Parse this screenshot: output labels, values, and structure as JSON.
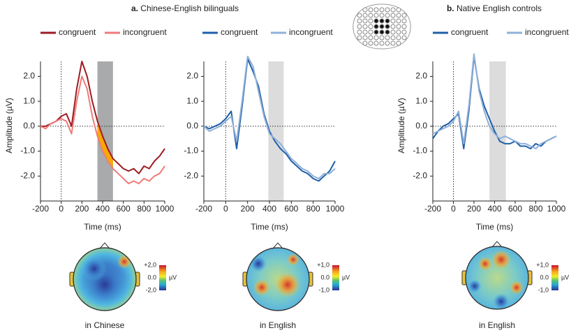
{
  "panels": [
    {
      "label": "a.",
      "title": "Chinese-English bilinguals"
    },
    {
      "label": "b.",
      "title": "Native English controls"
    }
  ],
  "chart_data": [
    {
      "type": "line",
      "xlabel": "Time (ms)",
      "ylabel": "Amplitude (µV)",
      "x": [
        -200,
        -150,
        -100,
        -50,
        0,
        50,
        100,
        150,
        200,
        250,
        300,
        350,
        400,
        450,
        500,
        550,
        600,
        650,
        700,
        750,
        800,
        850,
        900,
        950,
        1000
      ],
      "series": [
        {
          "name": "congruent",
          "color": "#9e1b22",
          "values": [
            0.0,
            0.0,
            0.1,
            0.2,
            0.4,
            0.5,
            0.0,
            1.5,
            2.6,
            2.0,
            1.0,
            0.2,
            -0.4,
            -0.9,
            -1.3,
            -1.5,
            -1.7,
            -1.8,
            -1.7,
            -1.9,
            -1.6,
            -1.7,
            -1.4,
            -1.2,
            -0.9
          ]
        },
        {
          "name": "incongruent",
          "color": "#ef7b78",
          "values": [
            0.0,
            -0.1,
            0.1,
            0.2,
            0.3,
            0.2,
            -0.3,
            1.0,
            2.0,
            1.5,
            0.4,
            -0.4,
            -1.0,
            -1.4,
            -1.7,
            -1.9,
            -2.1,
            -2.3,
            -2.2,
            -2.3,
            -2.1,
            -2.2,
            -2.0,
            -1.9,
            -1.6
          ]
        }
      ],
      "xlim": [
        -200,
        1000
      ],
      "xticks": [
        -200,
        0,
        200,
        400,
        600,
        800,
        1000
      ],
      "ylim": [
        -3.0,
        2.6
      ],
      "yticks": [
        {
          "value": -2,
          "label": "-2.0"
        },
        {
          "value": -1,
          "label": "-1.0"
        },
        {
          "value": 0,
          "label": "0.0"
        },
        {
          "value": 1,
          "label": "1.0"
        },
        {
          "value": 2,
          "label": "2.0"
        }
      ],
      "window": [
        350,
        500
      ],
      "window_color": "#a9aaac",
      "fill_between_color": "#f7a900"
    },
    {
      "type": "line",
      "xlabel": "Time (ms)",
      "x": [
        -200,
        -150,
        -100,
        -50,
        0,
        50,
        100,
        150,
        200,
        250,
        300,
        350,
        400,
        450,
        500,
        550,
        600,
        650,
        700,
        750,
        800,
        850,
        900,
        950,
        1000
      ],
      "series": [
        {
          "name": "congruent",
          "color": "#1f5fa8",
          "values": [
            0.0,
            -0.1,
            0.0,
            0.1,
            0.3,
            0.6,
            -0.9,
            0.8,
            2.7,
            2.2,
            1.6,
            0.5,
            -0.2,
            -0.6,
            -0.9,
            -1.1,
            -1.4,
            -1.6,
            -1.8,
            -1.9,
            -2.1,
            -2.2,
            -2.0,
            -1.8,
            -1.4
          ]
        },
        {
          "name": "incongruent",
          "color": "#8fb0d8",
          "values": [
            0.0,
            -0.2,
            -0.1,
            0.0,
            0.2,
            0.4,
            -0.6,
            1.0,
            2.8,
            2.4,
            1.4,
            0.4,
            -0.3,
            -0.5,
            -0.7,
            -1.0,
            -1.3,
            -1.5,
            -1.7,
            -1.8,
            -2.0,
            -2.1,
            -1.9,
            -1.9,
            -1.7
          ]
        }
      ],
      "xlim": [
        -200,
        1000
      ],
      "xticks": [
        -200,
        0,
        200,
        400,
        600,
        800,
        1000
      ],
      "ylim": [
        -3.0,
        2.6
      ],
      "yticks": [
        {
          "value": -2,
          "label": "-2.0"
        },
        {
          "value": -1,
          "label": "-1.0"
        },
        {
          "value": 0,
          "label": "0.0"
        },
        {
          "value": 1,
          "label": "1.0"
        },
        {
          "value": 2,
          "label": "2.0"
        }
      ],
      "window": [
        390,
        530
      ],
      "window_color": "#dcdcdd"
    },
    {
      "type": "line",
      "xlabel": "Time (ms)",
      "ylabel": "Amplitude (µV)",
      "x": [
        -200,
        -150,
        -100,
        -50,
        0,
        50,
        100,
        150,
        200,
        250,
        300,
        350,
        400,
        450,
        500,
        550,
        600,
        650,
        700,
        750,
        800,
        850,
        900,
        950,
        1000
      ],
      "series": [
        {
          "name": "congruent",
          "color": "#1f5fa8",
          "values": [
            -0.5,
            -0.2,
            0.0,
            0.1,
            0.3,
            0.5,
            -0.9,
            0.6,
            2.8,
            1.5,
            0.8,
            0.3,
            -0.2,
            -0.6,
            -0.7,
            -0.7,
            -0.6,
            -0.8,
            -0.8,
            -0.9,
            -0.7,
            -0.8,
            -0.6,
            -0.5,
            -0.4
          ]
        },
        {
          "name": "incongruent",
          "color": "#8fb0d8",
          "values": [
            -0.3,
            -0.2,
            -0.1,
            0.0,
            0.2,
            0.6,
            -0.7,
            0.8,
            2.9,
            1.4,
            0.6,
            0.0,
            -0.3,
            -0.5,
            -0.4,
            -0.5,
            -0.6,
            -0.7,
            -0.7,
            -0.8,
            -0.9,
            -0.7,
            -0.6,
            -0.5,
            -0.4
          ]
        }
      ],
      "xlim": [
        -200,
        1000
      ],
      "xticks": [
        -200,
        0,
        200,
        400,
        600,
        800,
        1000
      ],
      "ylim": [
        -3.0,
        2.6
      ],
      "yticks": [
        {
          "value": -2,
          "label": "-2.0"
        },
        {
          "value": -1,
          "label": "-1.0"
        },
        {
          "value": 0,
          "label": "0.0"
        },
        {
          "value": 1,
          "label": "1.0"
        },
        {
          "value": 2,
          "label": "2.0"
        }
      ],
      "window": [
        350,
        510
      ],
      "window_color": "#dcdcdd"
    }
  ],
  "topomaps": [
    {
      "caption": "in Chinese",
      "scale": [
        "+2,0",
        "0.0",
        "-2,0"
      ],
      "unit": "µV"
    },
    {
      "caption": "in English",
      "scale": [
        "+1,0",
        "0.0",
        "-1,0"
      ],
      "unit": "µV"
    },
    {
      "caption": "in English",
      "scale": [
        "+1,0",
        "0.0",
        "-1,0"
      ],
      "unit": "µV"
    }
  ]
}
